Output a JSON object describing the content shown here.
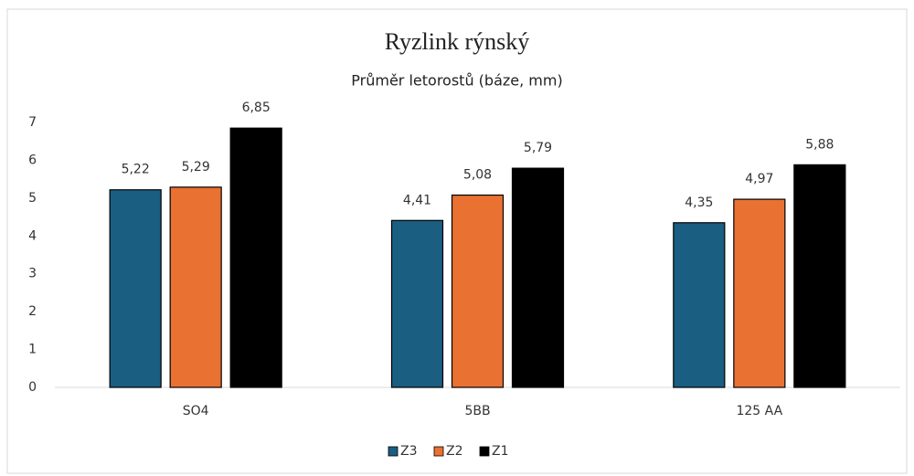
{
  "chart_data": {
    "type": "bar",
    "title": "Ryzlink rýnský",
    "subtitle": "Průměr letorostů (báze, mm)",
    "categories": [
      "SO4",
      "5BB",
      "125 AA"
    ],
    "series": [
      {
        "name": "Z3",
        "color": "#1a5e82",
        "values": [
          5.22,
          4.41,
          4.35
        ],
        "value_labels": [
          "5,22",
          "4,41",
          "4,35"
        ]
      },
      {
        "name": "Z2",
        "color": "#e97132",
        "values": [
          5.29,
          5.08,
          4.97
        ],
        "value_labels": [
          "5,29",
          "5,08",
          "4,97"
        ]
      },
      {
        "name": "Z1",
        "color": "#000000",
        "values": [
          6.85,
          5.79,
          5.88
        ],
        "value_labels": [
          "6,85",
          "5,79",
          "5,88"
        ]
      }
    ],
    "ylim": [
      0,
      7
    ],
    "yticks": [
      0,
      1,
      2,
      3,
      4,
      5,
      6,
      7
    ],
    "grid": false,
    "legend": "bottom"
  }
}
